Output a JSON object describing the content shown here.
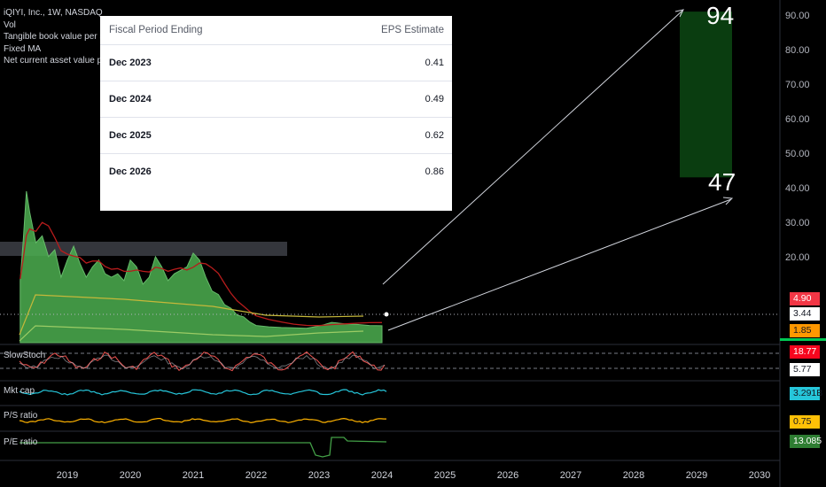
{
  "legend": {
    "symbol": "iQIYI, Inc., 1W, NASDAQ",
    "lines": [
      "Vol",
      "Tangible book value per share, FQ",
      "Fixed MA",
      "Net current asset value per share, FQ"
    ]
  },
  "eps_table": {
    "header_period": "Fiscal Period Ending",
    "header_value": "EPS Estimate",
    "rows": [
      {
        "period": "Dec 2023",
        "value": "0.41"
      },
      {
        "period": "Dec 2024",
        "value": "0.49"
      },
      {
        "period": "Dec 2025",
        "value": "0.62"
      },
      {
        "period": "Dec 2026",
        "value": "0.86"
      }
    ]
  },
  "targets": {
    "high": "94",
    "low": "47"
  },
  "panes": {
    "stoch": "SlowStoch",
    "mktcap": "Mkt cap",
    "ps": "P/S ratio",
    "pe": "P/E ratio"
  },
  "price_tags": [
    {
      "text": "4.90",
      "bg": "#f23645",
      "fg": "#ffffff"
    },
    {
      "text": "3.44",
      "bg": "#ffffff",
      "fg": "#131722"
    },
    {
      "text": "1.85",
      "bg": "#ff9800",
      "fg": "#131722"
    }
  ],
  "pane_tags": {
    "stoch_k": {
      "text": "18.77",
      "bg": "#f7061e",
      "fg": "#ffffff"
    },
    "stoch_d": {
      "text": "5.77",
      "bg": "#ffffff",
      "fg": "#131722"
    },
    "mktcap": {
      "text": "3.291B",
      "bg": "#26c6da",
      "fg": "#131722"
    },
    "ps": {
      "text": "0.75",
      "bg": "#ffc107",
      "fg": "#131722"
    },
    "pe": {
      "text": "13.085",
      "bg": "#2e7d32",
      "fg": "#ffffff"
    }
  },
  "colors": {
    "price_area": "#4caf50",
    "red_ma": "#b71c1c",
    "yellow": "#c6b83a",
    "target_box": "#0a3d10",
    "cyan": "#26c6da",
    "orange": "#ffb300",
    "green_line": "#43a047"
  },
  "chart_data": {
    "type": "area",
    "x_ticks": [
      "2019",
      "2020",
      "2021",
      "2022",
      "2023",
      "2024",
      "2025",
      "2026",
      "2027",
      "2028",
      "2029",
      "2030"
    ],
    "y_ticks": [
      "90.00",
      "80.00",
      "70.00",
      "60.00",
      "50.00",
      "40.00",
      "30.00",
      "20.00"
    ],
    "price": {
      "x": [
        2018.25,
        2018.3,
        2018.35,
        2018.4,
        2018.5,
        2018.6,
        2018.7,
        2018.8,
        2018.9,
        2019.0,
        2019.1,
        2019.2,
        2019.3,
        2019.4,
        2019.5,
        2019.6,
        2019.7,
        2019.8,
        2019.9,
        2020.0,
        2020.1,
        2020.2,
        2020.3,
        2020.4,
        2020.5,
        2020.6,
        2020.7,
        2020.8,
        2020.9,
        2021.0,
        2021.1,
        2021.2,
        2021.3,
        2021.4,
        2021.5,
        2021.6,
        2021.7,
        2021.8,
        2021.9,
        2022.0,
        2022.2,
        2022.4,
        2022.6,
        2022.8,
        2023.0,
        2023.2,
        2023.4,
        2023.6,
        2023.8,
        2024.0
      ],
      "y": [
        18,
        30,
        44,
        38,
        29,
        31,
        25,
        27,
        19,
        24,
        28,
        23,
        19,
        22,
        24,
        20,
        19,
        20,
        18,
        24,
        22,
        17,
        19,
        25,
        22,
        18,
        20,
        21,
        22,
        26,
        24,
        19,
        15,
        14,
        11,
        10,
        8,
        7.5,
        6,
        5,
        4.6,
        4.4,
        4.3,
        4.2,
        4.8,
        5.9,
        5.5,
        5.3,
        5.0,
        4.9
      ]
    },
    "target_range": [
      47,
      94
    ],
    "projection": {
      "from_x": 2024.0,
      "to_x": 2029.6
    }
  }
}
